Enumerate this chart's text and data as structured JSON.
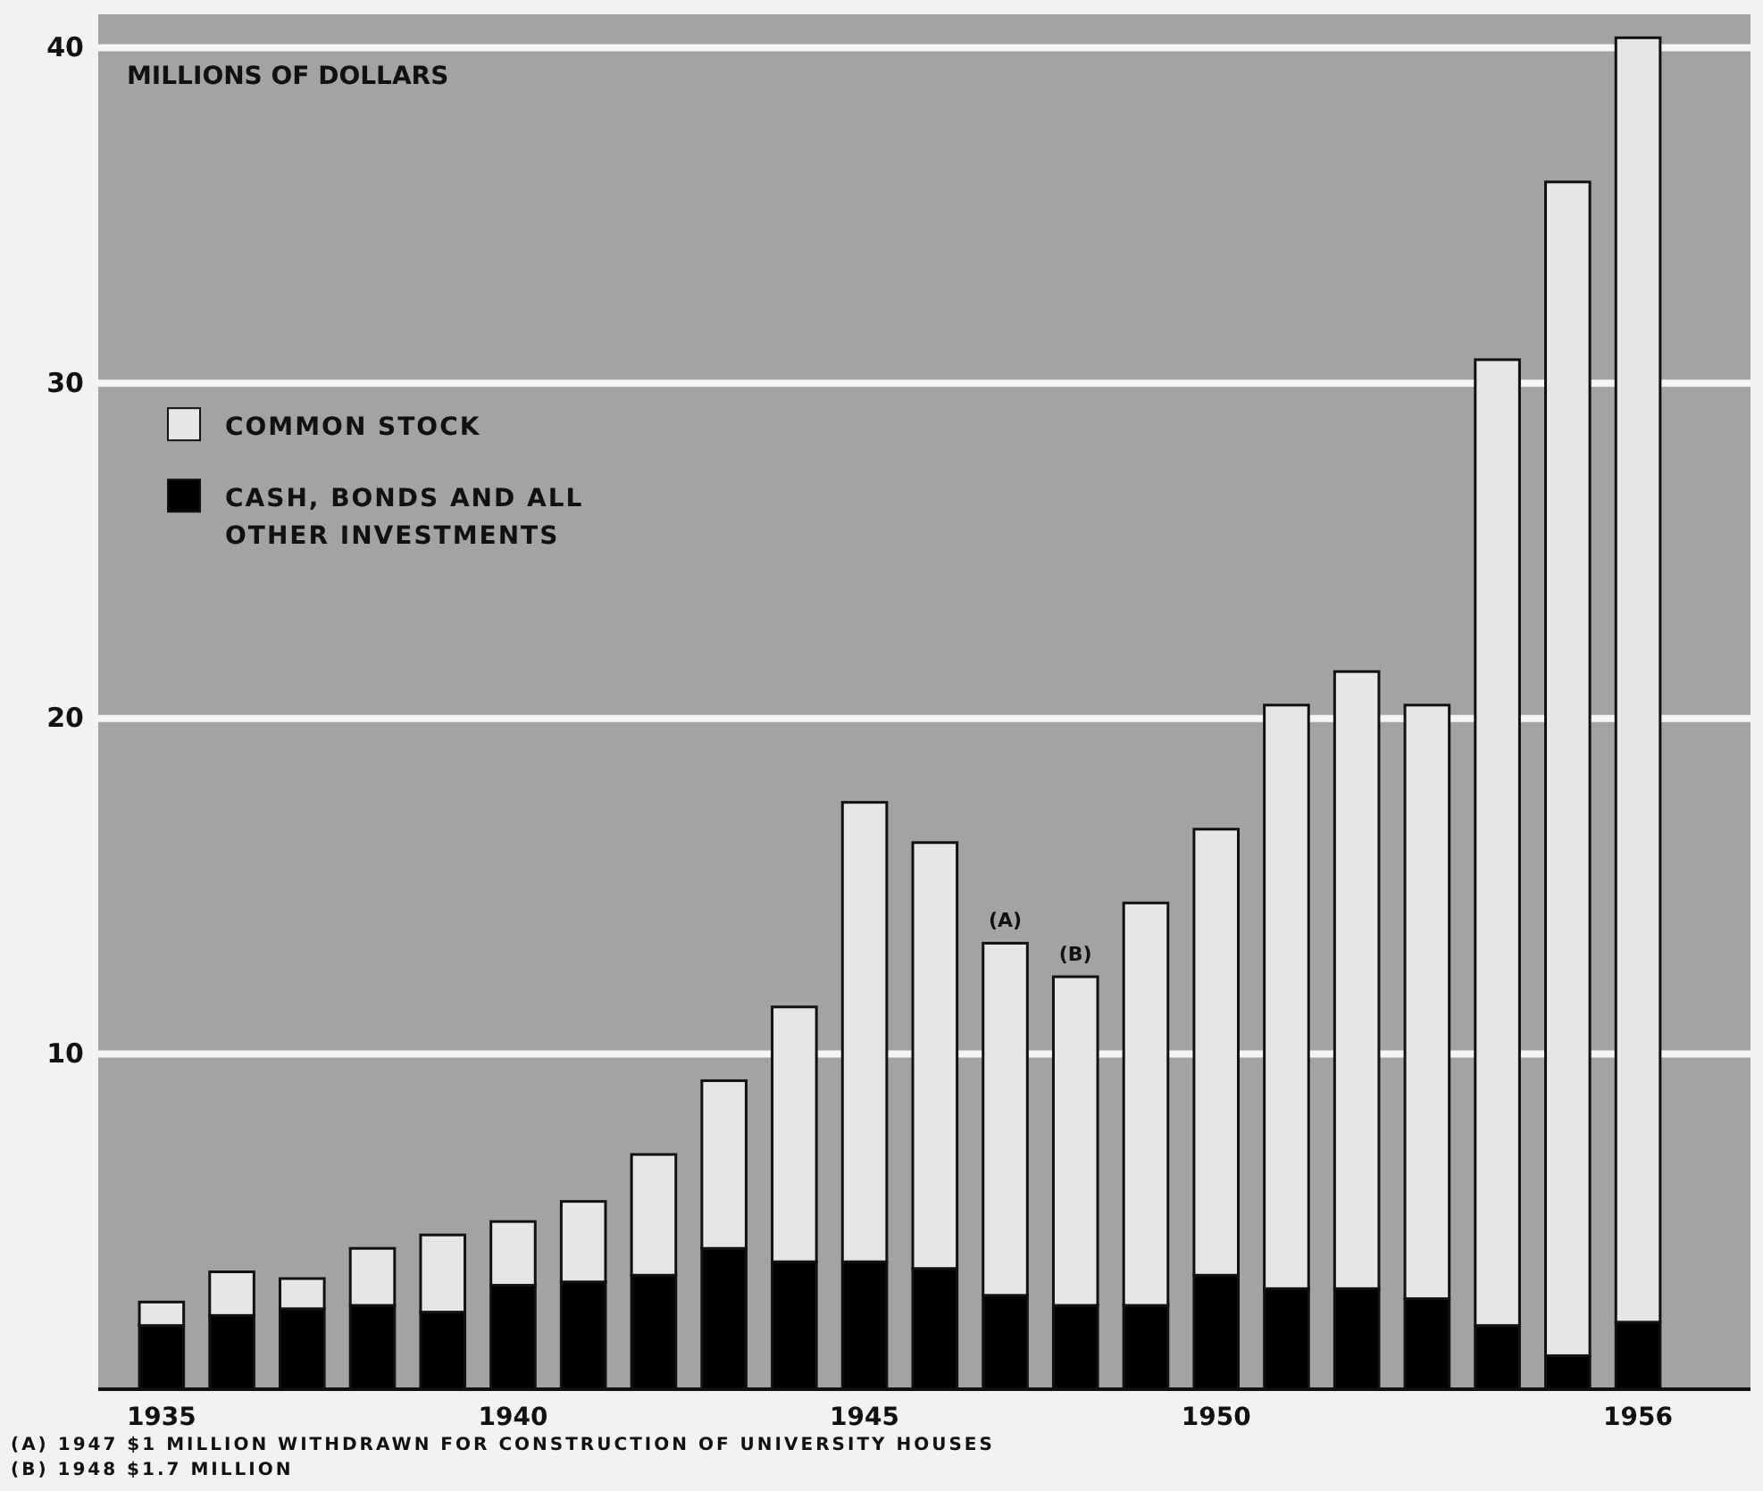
{
  "chart_data": {
    "type": "bar",
    "stacked": true,
    "ylabel": "MILLIONS OF DOLLARS",
    "x": [
      1935,
      1936,
      1937,
      1938,
      1939,
      1940,
      1941,
      1942,
      1943,
      1944,
      1945,
      1946,
      1947,
      1948,
      1949,
      1950,
      1951,
      1952,
      1953,
      1954,
      1955,
      1956
    ],
    "xlim": [
      1934.1,
      1957.6
    ],
    "xticks": [
      1935,
      1940,
      1945,
      1950,
      1956
    ],
    "ylim": [
      0,
      41
    ],
    "yticks": [
      10,
      20,
      30,
      40
    ],
    "grid": "y",
    "legend": "top left",
    "series": [
      {
        "name": "CASH, BONDS AND ALL OTHER INVESTMENTS",
        "color": "#000000",
        "values": [
          1.9,
          2.2,
          2.4,
          2.5,
          2.3,
          3.1,
          3.2,
          3.4,
          4.2,
          3.8,
          3.8,
          3.6,
          2.8,
          2.5,
          2.5,
          3.4,
          3.0,
          3.0,
          2.7,
          1.9,
          1.0,
          2.0
        ]
      },
      {
        "name": "COMMON STOCK",
        "color": "#e6e6e6",
        "values": [
          0.7,
          1.3,
          0.9,
          1.7,
          2.3,
          1.9,
          2.4,
          3.6,
          5.0,
          7.6,
          13.7,
          12.7,
          10.5,
          9.8,
          12.0,
          13.3,
          17.4,
          18.4,
          17.7,
          28.8,
          35.0,
          38.3
        ]
      }
    ],
    "annotations": [
      {
        "text": "(A)",
        "x": 1947,
        "y": 13.3
      },
      {
        "text": "(B)",
        "x": 1948,
        "y": 12.3
      },
      "(A) 1947 $1 MILLION WITHDRAWN FOR CONSTRUCTION OF UNIVERSITY HOUSES",
      "(B) 1948 $1.7 MILLION"
    ]
  }
}
